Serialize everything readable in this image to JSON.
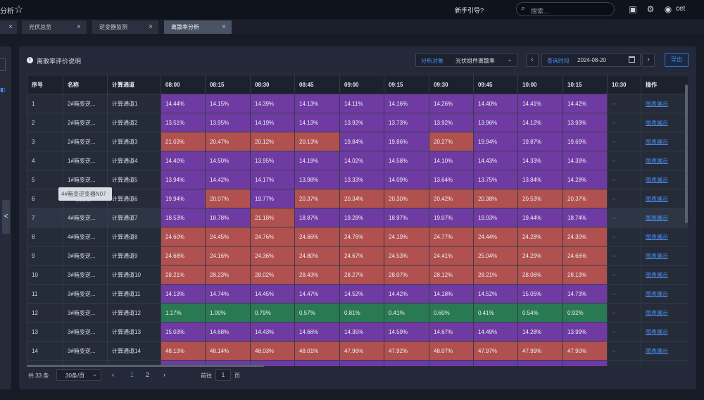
{
  "header": {
    "app_title": "分析",
    "guide": "新手引导?",
    "search_placeholder": "搜索...",
    "user": "cet"
  },
  "tabs": [
    {
      "label": "光伏总览",
      "active": false
    },
    {
      "label": "逆变器监测",
      "active": false
    },
    {
      "label": "离散率分析",
      "active": true
    }
  ],
  "info": {
    "text": "离散率评价说明"
  },
  "filter": {
    "label": "分析对象",
    "value": "光伏组件离散率",
    "date_label": "查询时段",
    "date_value": "2024-08-20",
    "export": "导出"
  },
  "table": {
    "columns": [
      "序号",
      "名称",
      "计算通道",
      "08:00",
      "08:15",
      "08:30",
      "08:45",
      "09:00",
      "09:15",
      "09:30",
      "09:45",
      "10:00",
      "10:15",
      "10:30",
      "操作"
    ],
    "op_label": "图表展示",
    "na": "--",
    "hover_row": 6,
    "rows": [
      {
        "no": "1",
        "name": "2#箱变逆...",
        "ch": "计算通道1",
        "vals": [
          "14.44%",
          "14.15%",
          "14.39%",
          "14.13%",
          "14.11%",
          "14.16%",
          "14.26%",
          "14.40%",
          "14.41%",
          "14.42%"
        ],
        "colors": [
          "p",
          "p",
          "p",
          "p",
          "p",
          "p",
          "p",
          "p",
          "p",
          "p"
        ]
      },
      {
        "no": "2",
        "name": "2#箱变逆...",
        "ch": "计算通道2",
        "vals": [
          "13.51%",
          "13.95%",
          "14.19%",
          "14.13%",
          "13.92%",
          "13.73%",
          "13.92%",
          "13.96%",
          "14.12%",
          "13.93%"
        ],
        "colors": [
          "p",
          "p",
          "p",
          "p",
          "p",
          "p",
          "p",
          "p",
          "p",
          "p"
        ]
      },
      {
        "no": "3",
        "name": "2#箱变逆...",
        "ch": "计算通道3",
        "vals": [
          "21.03%",
          "20.47%",
          "20.12%",
          "20.13%",
          "19.84%",
          "19.86%",
          "20.27%",
          "19.94%",
          "19.87%",
          "19.69%"
        ],
        "colors": [
          "r",
          "r",
          "r",
          "r",
          "p",
          "p",
          "r",
          "p",
          "p",
          "p"
        ]
      },
      {
        "no": "4",
        "name": "1#箱变逆...",
        "ch": "计算通道4",
        "vals": [
          "14.40%",
          "14.50%",
          "13.95%",
          "14.19%",
          "14.02%",
          "14.58%",
          "14.10%",
          "14.43%",
          "14.33%",
          "14.39%"
        ],
        "colors": [
          "p",
          "p",
          "p",
          "p",
          "p",
          "p",
          "p",
          "p",
          "p",
          "p"
        ]
      },
      {
        "no": "5",
        "name": "1#箱变逆...",
        "ch": "计算通道5",
        "vals": [
          "13.94%",
          "14.42%",
          "14.17%",
          "13.98%",
          "13.33%",
          "14.09%",
          "13.64%",
          "13.75%",
          "13.84%",
          "14.28%"
        ],
        "colors": [
          "p",
          "p",
          "p",
          "p",
          "p",
          "p",
          "p",
          "p",
          "p",
          "p"
        ]
      },
      {
        "no": "6",
        "name": "4#箱变逆...",
        "ch": "计算通道6",
        "vals": [
          "19.94%",
          "20.07%",
          "19.77%",
          "20.37%",
          "20.34%",
          "20.30%",
          "20.42%",
          "20.38%",
          "20.53%",
          "20.37%"
        ],
        "colors": [
          "p",
          "r",
          "p",
          "r",
          "r",
          "r",
          "r",
          "r",
          "r",
          "r"
        ]
      },
      {
        "no": "7",
        "name": "4#箱变逆...",
        "ch": "计算通道7",
        "vals": [
          "18.53%",
          "18.78%",
          "21.18%",
          "18.87%",
          "19.28%",
          "18.97%",
          "19.07%",
          "19.03%",
          "19.44%",
          "18.74%"
        ],
        "colors": [
          "p",
          "p",
          "r",
          "p",
          "p",
          "p",
          "p",
          "p",
          "p",
          "p"
        ]
      },
      {
        "no": "8",
        "name": "4#箱变逆...",
        "ch": "计算通道8",
        "vals": [
          "24.60%",
          "24.45%",
          "24.76%",
          "24.66%",
          "24.76%",
          "24.19%",
          "24.77%",
          "24.44%",
          "24.28%",
          "24.30%"
        ],
        "colors": [
          "r",
          "r",
          "r",
          "r",
          "r",
          "r",
          "r",
          "r",
          "r",
          "r"
        ]
      },
      {
        "no": "9",
        "name": "3#箱变逆...",
        "ch": "计算通道9",
        "vals": [
          "24.68%",
          "24.16%",
          "24.36%",
          "24.80%",
          "24.67%",
          "24.53%",
          "24.41%",
          "25.04%",
          "24.29%",
          "24.66%"
        ],
        "colors": [
          "r",
          "r",
          "r",
          "r",
          "r",
          "r",
          "r",
          "r",
          "r",
          "r"
        ]
      },
      {
        "no": "10",
        "name": "3#箱变逆...",
        "ch": "计算通道10",
        "vals": [
          "28.21%",
          "28.23%",
          "28.02%",
          "28.43%",
          "28.27%",
          "28.07%",
          "28.12%",
          "28.21%",
          "28.06%",
          "28.13%"
        ],
        "colors": [
          "r",
          "r",
          "r",
          "r",
          "r",
          "r",
          "r",
          "r",
          "r",
          "r"
        ]
      },
      {
        "no": "11",
        "name": "3#箱变逆...",
        "ch": "计算通道11",
        "vals": [
          "14.13%",
          "14.74%",
          "14.45%",
          "14.47%",
          "14.52%",
          "14.42%",
          "14.18%",
          "14.52%",
          "15.05%",
          "14.73%"
        ],
        "colors": [
          "p",
          "p",
          "p",
          "p",
          "p",
          "p",
          "p",
          "p",
          "p",
          "p"
        ]
      },
      {
        "no": "12",
        "name": "3#箱变逆...",
        "ch": "计算通道12",
        "vals": [
          "1.17%",
          "1.00%",
          "0.79%",
          "0.57%",
          "0.81%",
          "0.41%",
          "0.60%",
          "0.41%",
          "0.54%",
          "0.92%"
        ],
        "colors": [
          "g",
          "g",
          "g",
          "g",
          "g",
          "g",
          "g",
          "g",
          "g",
          "g"
        ]
      },
      {
        "no": "13",
        "name": "3#箱变逆...",
        "ch": "计算通道13",
        "vals": [
          "15.03%",
          "14.68%",
          "14.43%",
          "14.66%",
          "14.35%",
          "14.59%",
          "14.67%",
          "14.49%",
          "14.28%",
          "13.99%"
        ],
        "colors": [
          "p",
          "p",
          "p",
          "p",
          "p",
          "p",
          "p",
          "p",
          "p",
          "p"
        ]
      },
      {
        "no": "14",
        "name": "3#箱变逆...",
        "ch": "计算通道14",
        "vals": [
          "48.13%",
          "48.14%",
          "48.03%",
          "48.01%",
          "47.96%",
          "47.92%",
          "48.07%",
          "47.97%",
          "47.99%",
          "47.90%"
        ],
        "colors": [
          "r",
          "r",
          "r",
          "r",
          "r",
          "r",
          "r",
          "r",
          "r",
          "r"
        ]
      },
      {
        "no": "",
        "name": "",
        "ch": "",
        "vals": [
          "",
          "",
          "",
          "",
          "",
          "",
          "",
          "",
          "",
          ""
        ],
        "colors": [
          "p",
          "p",
          "p",
          "p",
          "p",
          "p",
          "p",
          "p",
          "p",
          "p"
        ]
      }
    ]
  },
  "tooltip": {
    "text": "4#箱变逆变器N07"
  },
  "pager": {
    "total": "共 33 条",
    "page_size": "30条/页",
    "pages": [
      "1",
      "2"
    ],
    "current": "1",
    "goto_prefix": "前往",
    "goto_value": "1",
    "goto_suffix": "页"
  },
  "colors": {
    "purple": "#6f3ba3",
    "red": "#b0504f",
    "green": "#297a52",
    "accent": "#4a8ef0"
  }
}
